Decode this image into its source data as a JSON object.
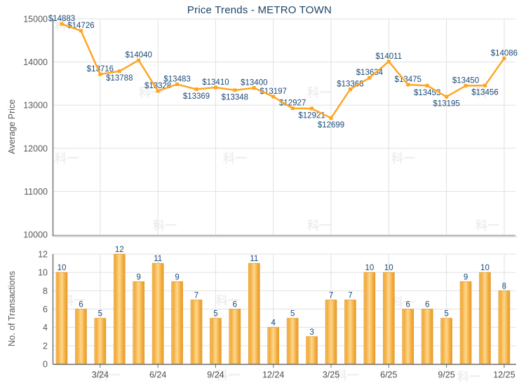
{
  "title": "Price Trends - METRO TOWN",
  "watermark": {
    "text": "科一"
  },
  "x_axis": {
    "n_points": 24,
    "tick_labels": [
      "3/24",
      "6/24",
      "9/24",
      "12/24",
      "3/25",
      "6/25",
      "9/25",
      "12/25"
    ],
    "tick_indices": [
      2,
      5,
      8,
      11,
      14,
      17,
      20,
      23
    ]
  },
  "chart_data": [
    {
      "type": "line",
      "title": "Price Trends - METRO TOWN",
      "ylabel": "Average Price",
      "ylim": [
        10000,
        15000
      ],
      "yticks": [
        10000,
        11000,
        12000,
        13000,
        14000,
        15000
      ],
      "grid": true,
      "values": [
        14883,
        14726,
        13716,
        13788,
        14040,
        13328,
        13483,
        13369,
        13410,
        13348,
        13400,
        13197,
        12927,
        12921,
        12699,
        13368,
        13634,
        14011,
        13475,
        13453,
        13195,
        13450,
        13456,
        14086
      ],
      "point_labels": [
        "$14883",
        "$14726",
        "$13716",
        "$13788",
        "$14040",
        "$13328",
        "$13483",
        "$13369",
        "$13410",
        "$13348",
        "$13400",
        "$13197",
        "$12927",
        "$12921",
        "$12699",
        "$13368",
        "$13634",
        "$14011",
        "$13475",
        "$13453",
        "$13195",
        "$13450",
        "$13456",
        "$14086"
      ],
      "label_positions": [
        "above",
        "above",
        "above",
        "below",
        "above",
        "above",
        "above",
        "below",
        "above",
        "below",
        "above",
        "above",
        "above",
        "below",
        "below",
        "above",
        "above",
        "above",
        "above",
        "below",
        "below",
        "above",
        "below",
        "above"
      ],
      "line_color": "#FFA41D",
      "marker": "square"
    },
    {
      "type": "bar",
      "ylabel": "No. of Transactions",
      "ylim": [
        0,
        12
      ],
      "yticks": [
        0,
        2,
        4,
        6,
        8,
        10,
        12
      ],
      "grid": true,
      "values": [
        10,
        6,
        5,
        12,
        9,
        11,
        9,
        7,
        5,
        6,
        11,
        4,
        5,
        3,
        7,
        7,
        10,
        10,
        6,
        6,
        5,
        9,
        10,
        8
      ],
      "bar_gradient": [
        "#F7C464",
        "#F3AA3C",
        "#FDD88D",
        "#F0A634",
        "#ED9F2E"
      ],
      "bar_border": "#E0941F"
    }
  ],
  "colors": {
    "label_navy": "#1B4A78",
    "title_navy": "#1C4467",
    "tick_gray": "#595959",
    "xlabel_gray": "#4C4C4C",
    "grid": "#E0E0E0",
    "axis": "#6A6A6A",
    "panel_divider": "#ABABAB"
  }
}
